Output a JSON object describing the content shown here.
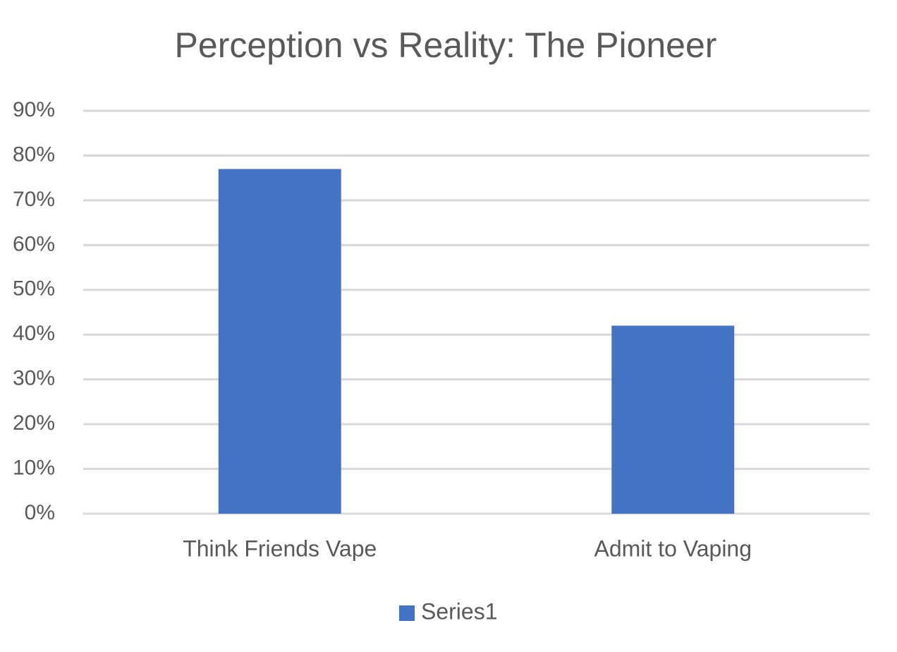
{
  "chart_data": {
    "type": "bar",
    "title": "Perception vs Reality: The Pioneer",
    "categories": [
      "Think Friends Vape",
      "Admit to Vaping"
    ],
    "series": [
      {
        "name": "Series1",
        "color": "#4472c4",
        "values": [
          77,
          42
        ]
      }
    ],
    "ylim": [
      0,
      90
    ],
    "yticks": [
      {
        "value": 0,
        "label": "0%"
      },
      {
        "value": 10,
        "label": "10%"
      },
      {
        "value": 20,
        "label": "20%"
      },
      {
        "value": 30,
        "label": "30%"
      },
      {
        "value": 40,
        "label": "40%"
      },
      {
        "value": 50,
        "label": "50%"
      },
      {
        "value": 60,
        "label": "60%"
      },
      {
        "value": 70,
        "label": "70%"
      },
      {
        "value": 80,
        "label": "80%"
      },
      {
        "value": 90,
        "label": "90%"
      }
    ],
    "grid": true,
    "legend": "bottom"
  }
}
